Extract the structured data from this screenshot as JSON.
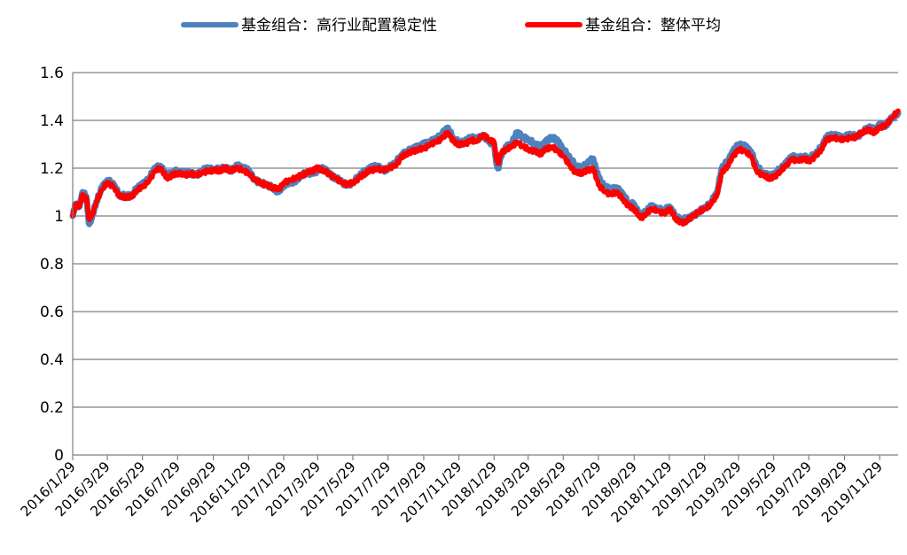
{
  "chart_data": {
    "type": "line",
    "title": "",
    "xlabel": "",
    "ylabel": "",
    "ylim": [
      0,
      1.6
    ],
    "yticks": [
      "0",
      "0.2",
      "0.4",
      "0.6",
      "0.8",
      "1",
      "1.2",
      "1.4",
      "1.6"
    ],
    "xticks": [
      "2016/1/29",
      "2016/3/29",
      "2016/5/29",
      "2016/7/29",
      "2016/9/29",
      "2016/11/29",
      "2017/1/29",
      "2017/3/29",
      "2017/5/29",
      "2017/7/29",
      "2017/9/29",
      "2017/11/29",
      "2018/1/29",
      "2018/3/29",
      "2018/5/29",
      "2018/7/29",
      "2018/9/29",
      "2018/11/29",
      "2019/1/29",
      "2019/3/29",
      "2019/5/29",
      "2019/7/29",
      "2019/9/29",
      "2019/11/29"
    ],
    "x_range": [
      "2016/1/29",
      "2019/12/31"
    ],
    "grid": "horizontal",
    "legend_position": "top",
    "series": [
      {
        "name": "基金组合：高行业配置稳定性",
        "color": "#4F81BD",
        "x": [
          "2016/1/29",
          "2016/2/3",
          "2016/2/10",
          "2016/2/15",
          "2016/2/22",
          "2016/2/26",
          "2016/3/2",
          "2016/3/10",
          "2016/3/20",
          "2016/3/29",
          "2016/4/10",
          "2016/4/20",
          "2016/4/29",
          "2016/5/10",
          "2016/5/20",
          "2016/5/29",
          "2016/6/10",
          "2016/6/20",
          "2016/6/29",
          "2016/7/10",
          "2016/7/20",
          "2016/7/29",
          "2016/8/10",
          "2016/8/20",
          "2016/8/29",
          "2016/9/10",
          "2016/9/20",
          "2016/9/29",
          "2016/10/10",
          "2016/10/20",
          "2016/10/29",
          "2016/11/10",
          "2016/11/20",
          "2016/11/29",
          "2016/12/10",
          "2016/12/20",
          "2016/12/29",
          "2017/1/10",
          "2017/1/20",
          "2017/1/29",
          "2017/2/10",
          "2017/2/20",
          "2017/2/28",
          "2017/3/10",
          "2017/3/20",
          "2017/3/29",
          "2017/4/10",
          "2017/4/20",
          "2017/4/29",
          "2017/5/10",
          "2017/5/20",
          "2017/5/29",
          "2017/6/10",
          "2017/6/20",
          "2017/6/29",
          "2017/7/10",
          "2017/7/20",
          "2017/7/29",
          "2017/8/10",
          "2017/8/20",
          "2017/8/29",
          "2017/9/10",
          "2017/9/20",
          "2017/9/29",
          "2017/10/10",
          "2017/10/20",
          "2017/10/29",
          "2017/11/10",
          "2017/11/20",
          "2017/11/29",
          "2017/12/10",
          "2017/12/20",
          "2017/12/29",
          "2018/1/10",
          "2018/1/20",
          "2018/1/29",
          "2018/2/2",
          "2018/2/6",
          "2018/2/9",
          "2018/2/20",
          "2018/2/28",
          "2018/3/10",
          "2018/3/20",
          "2018/3/29",
          "2018/4/10",
          "2018/4/20",
          "2018/4/29",
          "2018/5/10",
          "2018/5/20",
          "2018/5/29",
          "2018/6/10",
          "2018/6/20",
          "2018/6/29",
          "2018/7/10",
          "2018/7/20",
          "2018/7/29",
          "2018/8/10",
          "2018/8/20",
          "2018/8/29",
          "2018/9/10",
          "2018/9/20",
          "2018/9/29",
          "2018/10/10",
          "2018/10/20",
          "2018/10/29",
          "2018/11/10",
          "2018/11/20",
          "2018/11/29",
          "2018/12/10",
          "2018/12/20",
          "2018/12/29",
          "2019/1/10",
          "2019/1/20",
          "2019/1/29",
          "2019/2/10",
          "2019/2/20",
          "2019/2/28",
          "2019/3/10",
          "2019/3/20",
          "2019/3/29",
          "2019/4/10",
          "2019/4/20",
          "2019/4/29",
          "2019/5/10",
          "2019/5/20",
          "2019/5/29",
          "2019/6/10",
          "2019/6/20",
          "2019/6/29",
          "2019/7/10",
          "2019/7/20",
          "2019/7/29",
          "2019/8/10",
          "2019/8/20",
          "2019/8/29",
          "2019/9/10",
          "2019/9/20",
          "2019/9/29",
          "2019/10/10",
          "2019/10/20",
          "2019/10/29",
          "2019/11/10",
          "2019/11/20",
          "2019/11/29",
          "2019/12/10",
          "2019/12/20",
          "2019/12/31"
        ],
        "values": [
          1.0,
          1.05,
          1.04,
          1.1,
          1.08,
          0.97,
          0.99,
          1.06,
          1.12,
          1.15,
          1.13,
          1.08,
          1.09,
          1.08,
          1.12,
          1.13,
          1.16,
          1.2,
          1.21,
          1.17,
          1.18,
          1.19,
          1.18,
          1.18,
          1.17,
          1.19,
          1.2,
          1.19,
          1.2,
          1.2,
          1.19,
          1.21,
          1.2,
          1.19,
          1.15,
          1.14,
          1.13,
          1.12,
          1.1,
          1.13,
          1.14,
          1.15,
          1.17,
          1.18,
          1.18,
          1.19,
          1.2,
          1.17,
          1.16,
          1.14,
          1.13,
          1.14,
          1.17,
          1.19,
          1.2,
          1.21,
          1.19,
          1.2,
          1.22,
          1.25,
          1.27,
          1.28,
          1.29,
          1.3,
          1.31,
          1.32,
          1.34,
          1.37,
          1.32,
          1.31,
          1.31,
          1.33,
          1.32,
          1.34,
          1.31,
          1.3,
          1.22,
          1.2,
          1.25,
          1.29,
          1.3,
          1.35,
          1.33,
          1.32,
          1.3,
          1.29,
          1.31,
          1.33,
          1.31,
          1.28,
          1.24,
          1.21,
          1.2,
          1.22,
          1.24,
          1.16,
          1.12,
          1.11,
          1.12,
          1.09,
          1.05,
          1.05,
          1.0,
          1.02,
          1.04,
          1.03,
          1.02,
          1.04,
          1.0,
          0.98,
          0.99,
          1.0,
          1.02,
          1.03,
          1.06,
          1.1,
          1.2,
          1.23,
          1.27,
          1.3,
          1.29,
          1.27,
          1.21,
          1.18,
          1.17,
          1.17,
          1.2,
          1.22,
          1.25,
          1.24,
          1.25,
          1.24,
          1.26,
          1.29,
          1.33,
          1.34,
          1.33,
          1.33,
          1.34,
          1.33,
          1.35,
          1.37,
          1.36,
          1.38,
          1.38,
          1.41,
          1.43
        ]
      },
      {
        "name": "基金组合：整体平均",
        "color": "#FF0000",
        "x": [
          "2016/1/29",
          "2016/2/3",
          "2016/2/10",
          "2016/2/15",
          "2016/2/22",
          "2016/2/26",
          "2016/3/2",
          "2016/3/10",
          "2016/3/20",
          "2016/3/29",
          "2016/4/10",
          "2016/4/20",
          "2016/4/29",
          "2016/5/10",
          "2016/5/20",
          "2016/5/29",
          "2016/6/10",
          "2016/6/20",
          "2016/6/29",
          "2016/7/10",
          "2016/7/20",
          "2016/7/29",
          "2016/8/10",
          "2016/8/20",
          "2016/8/29",
          "2016/9/10",
          "2016/9/20",
          "2016/9/29",
          "2016/10/10",
          "2016/10/20",
          "2016/10/29",
          "2016/11/10",
          "2016/11/20",
          "2016/11/29",
          "2016/12/10",
          "2016/12/20",
          "2016/12/29",
          "2017/1/10",
          "2017/1/20",
          "2017/1/29",
          "2017/2/10",
          "2017/2/20",
          "2017/2/28",
          "2017/3/10",
          "2017/3/20",
          "2017/3/29",
          "2017/4/10",
          "2017/4/20",
          "2017/4/29",
          "2017/5/10",
          "2017/5/20",
          "2017/5/29",
          "2017/6/10",
          "2017/6/20",
          "2017/6/29",
          "2017/7/10",
          "2017/7/20",
          "2017/7/29",
          "2017/8/10",
          "2017/8/20",
          "2017/8/29",
          "2017/9/10",
          "2017/9/20",
          "2017/9/29",
          "2017/10/10",
          "2017/10/20",
          "2017/10/29",
          "2017/11/10",
          "2017/11/20",
          "2017/11/29",
          "2017/12/10",
          "2017/12/20",
          "2017/12/29",
          "2018/1/10",
          "2018/1/20",
          "2018/1/29",
          "2018/2/2",
          "2018/2/6",
          "2018/2/9",
          "2018/2/20",
          "2018/2/28",
          "2018/3/10",
          "2018/3/20",
          "2018/3/29",
          "2018/4/10",
          "2018/4/20",
          "2018/4/29",
          "2018/5/10",
          "2018/5/20",
          "2018/5/29",
          "2018/6/10",
          "2018/6/20",
          "2018/6/29",
          "2018/7/10",
          "2018/7/20",
          "2018/7/29",
          "2018/8/10",
          "2018/8/20",
          "2018/8/29",
          "2018/9/10",
          "2018/9/20",
          "2018/9/29",
          "2018/10/10",
          "2018/10/20",
          "2018/10/29",
          "2018/11/10",
          "2018/11/20",
          "2018/11/29",
          "2018/12/10",
          "2018/12/20",
          "2018/12/29",
          "2019/1/10",
          "2019/1/20",
          "2019/1/29",
          "2019/2/10",
          "2019/2/20",
          "2019/2/28",
          "2019/3/10",
          "2019/3/20",
          "2019/3/29",
          "2019/4/10",
          "2019/4/20",
          "2019/4/29",
          "2019/5/10",
          "2019/5/20",
          "2019/5/29",
          "2019/6/10",
          "2019/6/20",
          "2019/6/29",
          "2019/7/10",
          "2019/7/20",
          "2019/7/29",
          "2019/8/10",
          "2019/8/20",
          "2019/8/29",
          "2019/9/10",
          "2019/9/20",
          "2019/9/29",
          "2019/10/10",
          "2019/10/20",
          "2019/10/29",
          "2019/11/10",
          "2019/11/20",
          "2019/11/29",
          "2019/12/10",
          "2019/12/20",
          "2019/12/31"
        ],
        "values": [
          1.0,
          1.05,
          1.04,
          1.09,
          1.07,
          0.99,
          1.0,
          1.06,
          1.11,
          1.14,
          1.12,
          1.08,
          1.08,
          1.08,
          1.11,
          1.12,
          1.15,
          1.19,
          1.2,
          1.16,
          1.17,
          1.18,
          1.17,
          1.18,
          1.17,
          1.18,
          1.19,
          1.19,
          1.19,
          1.2,
          1.19,
          1.2,
          1.19,
          1.18,
          1.15,
          1.14,
          1.13,
          1.12,
          1.11,
          1.14,
          1.15,
          1.16,
          1.17,
          1.18,
          1.19,
          1.2,
          1.19,
          1.17,
          1.16,
          1.14,
          1.13,
          1.14,
          1.16,
          1.18,
          1.19,
          1.2,
          1.19,
          1.2,
          1.21,
          1.24,
          1.26,
          1.27,
          1.28,
          1.28,
          1.3,
          1.31,
          1.32,
          1.35,
          1.31,
          1.3,
          1.3,
          1.32,
          1.31,
          1.34,
          1.32,
          1.31,
          1.24,
          1.22,
          1.26,
          1.28,
          1.29,
          1.31,
          1.29,
          1.28,
          1.27,
          1.26,
          1.28,
          1.29,
          1.27,
          1.25,
          1.21,
          1.18,
          1.18,
          1.19,
          1.2,
          1.13,
          1.1,
          1.09,
          1.1,
          1.07,
          1.04,
          1.03,
          0.99,
          1.01,
          1.03,
          1.02,
          1.01,
          1.03,
          0.99,
          0.97,
          0.98,
          1.0,
          1.02,
          1.03,
          1.05,
          1.09,
          1.18,
          1.21,
          1.25,
          1.28,
          1.27,
          1.25,
          1.19,
          1.17,
          1.16,
          1.16,
          1.19,
          1.21,
          1.24,
          1.23,
          1.24,
          1.23,
          1.25,
          1.28,
          1.32,
          1.33,
          1.32,
          1.32,
          1.33,
          1.33,
          1.35,
          1.36,
          1.35,
          1.37,
          1.38,
          1.41,
          1.44
        ]
      }
    ]
  }
}
